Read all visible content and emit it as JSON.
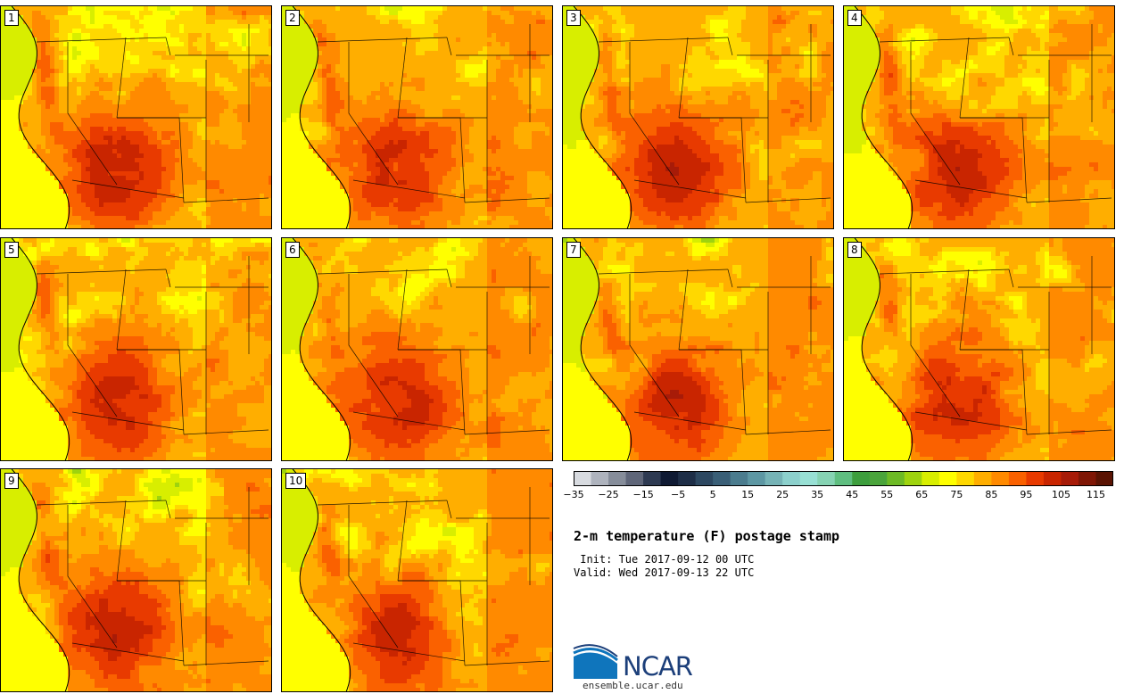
{
  "panels": [
    {
      "label": "1"
    },
    {
      "label": "2"
    },
    {
      "label": "3"
    },
    {
      "label": "4"
    },
    {
      "label": "5"
    },
    {
      "label": "6"
    },
    {
      "label": "7"
    },
    {
      "label": "8"
    },
    {
      "label": "9"
    },
    {
      "label": "10"
    }
  ],
  "colorbar": {
    "min": -35,
    "max": 120,
    "step": 5,
    "tick_labels": [
      "−35",
      "−25",
      "−15",
      "−5",
      "5",
      "15",
      "25",
      "35",
      "45",
      "55",
      "65",
      "75",
      "85",
      "95",
      "105",
      "115"
    ],
    "colors": [
      "#d8dbe0",
      "#aeb3bd",
      "#868d9a",
      "#5f6679",
      "#2e3a52",
      "#0f1a33",
      "#1e2e47",
      "#2d4861",
      "#3a5f77",
      "#4b7c8e",
      "#5d97a3",
      "#76b3b6",
      "#8cd0cc",
      "#98e0d4",
      "#86d3b3",
      "#5fbe80",
      "#3d9e3d",
      "#4aa43b",
      "#6dba25",
      "#9ed30e",
      "#d8ee00",
      "#ffff00",
      "#ffd800",
      "#ffae00",
      "#ff8a00",
      "#fa6100",
      "#e83a00",
      "#c92500",
      "#a71b08",
      "#7f1605",
      "#5a1303"
    ]
  },
  "title": "2-m temperature (F) postage stamp",
  "init_text": " Init: Tue 2017-09-12 00 UTC",
  "valid_text": "Valid: Wed 2017-09-13 22 UTC",
  "logo": {
    "text": "NCAR",
    "url": "ensemble.ucar.edu",
    "colors": {
      "blue": "#0f75bc",
      "navy": "#1c3f7a"
    }
  }
}
